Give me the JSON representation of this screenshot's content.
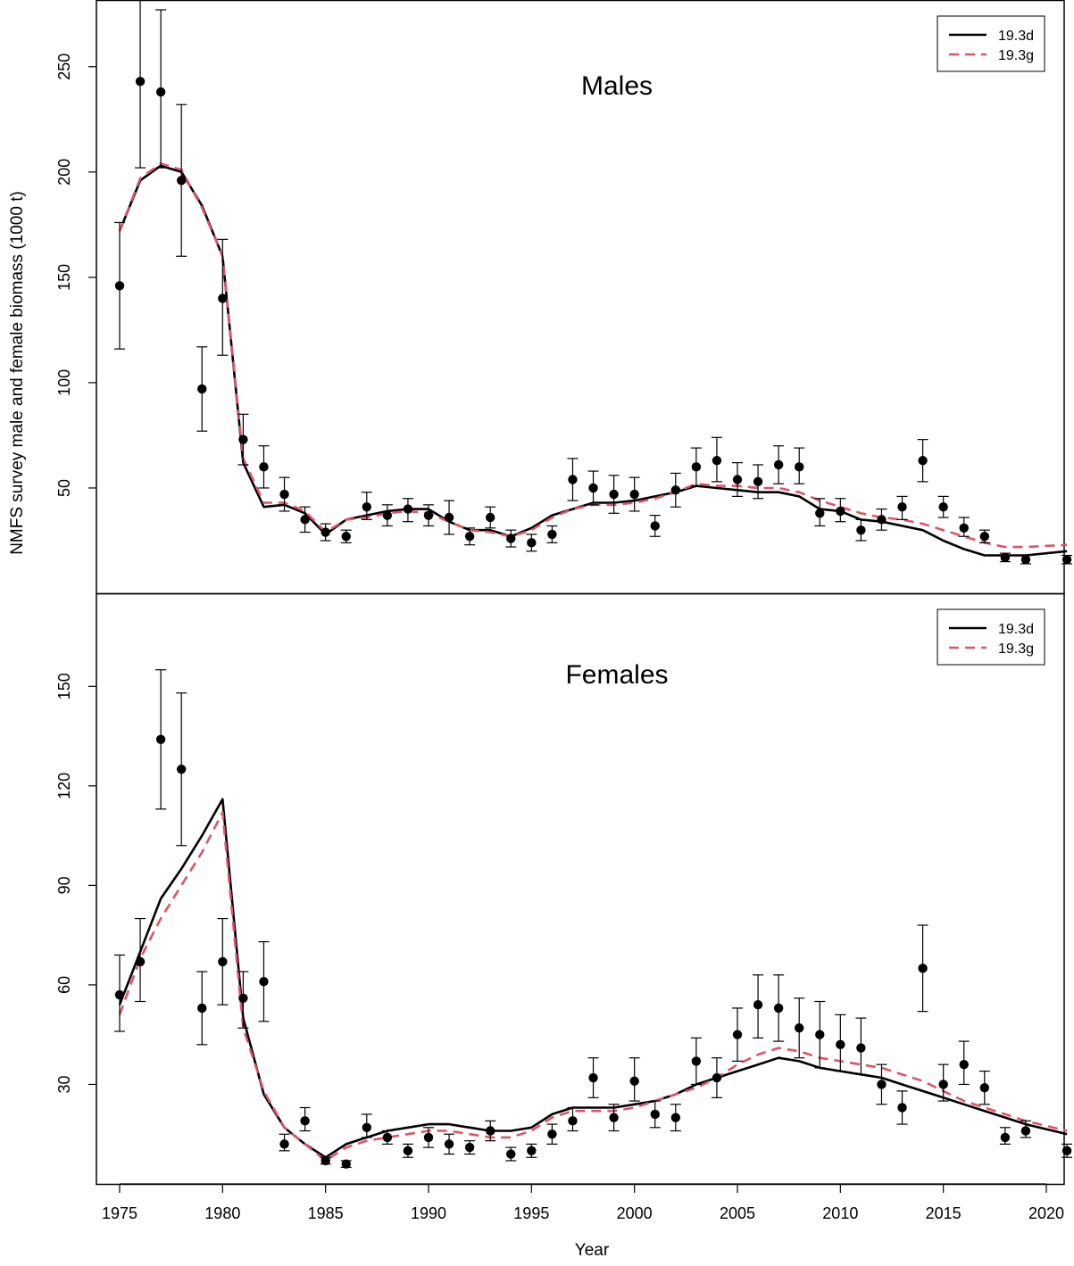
{
  "ylabel": "NMFS survey male and female biomass (1000 t)",
  "xlabel": "Year",
  "colors": {
    "model_3d": "#000000",
    "model_3g": "#DF536B",
    "obs": "#000000"
  },
  "chart_data": [
    {
      "type": "line",
      "title": "Males",
      "xlim": [
        1975,
        2020
      ],
      "ylim": [
        0,
        280
      ],
      "yticks": [
        50,
        100,
        150,
        200,
        250
      ],
      "legend_position": "top-right",
      "legend": [
        "19.3d",
        "19.3g"
      ],
      "observed": {
        "years": [
          1975,
          1976,
          1977,
          1978,
          1979,
          1980,
          1981,
          1982,
          1983,
          1984,
          1985,
          1986,
          1987,
          1988,
          1989,
          1990,
          1991,
          1992,
          1993,
          1994,
          1995,
          1996,
          1997,
          1998,
          1999,
          2000,
          2001,
          2002,
          2003,
          2004,
          2005,
          2006,
          2007,
          2008,
          2009,
          2010,
          2011,
          2012,
          2013,
          2014,
          2015,
          2016,
          2017,
          2018,
          2019,
          2021
        ],
        "values": [
          146,
          243,
          238,
          196,
          97,
          140,
          73,
          60,
          47,
          35,
          29,
          27,
          41,
          37,
          40,
          37,
          36,
          27,
          36,
          26,
          24,
          28,
          54,
          50,
          47,
          47,
          32,
          49,
          60,
          63,
          54,
          53,
          61,
          60,
          38,
          39,
          30,
          35,
          41,
          63,
          41,
          31,
          27,
          17,
          16,
          16
        ],
        "lower": [
          116,
          202,
          202,
          160,
          77,
          113,
          61,
          50,
          39,
          29,
          25,
          24,
          35,
          32,
          34,
          32,
          28,
          23,
          31,
          22,
          20,
          24,
          44,
          42,
          38,
          39,
          27,
          41,
          51,
          53,
          46,
          45,
          52,
          52,
          32,
          34,
          25,
          30,
          35,
          53,
          36,
          27,
          24,
          15,
          14,
          14
        ],
        "upper": [
          176,
          285,
          277,
          232,
          117,
          168,
          85,
          70,
          55,
          41,
          33,
          30,
          48,
          42,
          45,
          42,
          44,
          31,
          41,
          30,
          28,
          32,
          64,
          58,
          56,
          55,
          37,
          57,
          69,
          74,
          62,
          61,
          70,
          69,
          45,
          45,
          35,
          40,
          46,
          73,
          46,
          36,
          30,
          19,
          18,
          18
        ]
      },
      "series": [
        {
          "name": "19.3d",
          "x": [
            1975,
            1976,
            1977,
            1978,
            1979,
            1980,
            1981,
            1982,
            1983,
            1984,
            1985,
            1986,
            1987,
            1988,
            1989,
            1990,
            1991,
            1992,
            1993,
            1994,
            1995,
            1996,
            1997,
            1998,
            1999,
            2000,
            2001,
            2002,
            2003,
            2004,
            2005,
            2006,
            2007,
            2008,
            2009,
            2010,
            2011,
            2012,
            2013,
            2014,
            2015,
            2016,
            2017,
            2018,
            2019,
            2021
          ],
          "values": [
            172,
            196,
            203,
            200,
            184,
            160,
            62,
            41,
            42,
            38,
            28,
            35,
            37,
            39,
            40,
            40,
            34,
            30,
            30,
            27,
            31,
            37,
            40,
            43,
            43,
            44,
            46,
            48,
            51,
            50,
            49,
            48,
            48,
            46,
            40,
            39,
            35,
            34,
            32,
            30,
            25,
            21,
            18,
            18,
            18,
            20
          ]
        },
        {
          "name": "19.3g",
          "x": [
            1975,
            1976,
            1977,
            1978,
            1979,
            1980,
            1981,
            1982,
            1983,
            1984,
            1985,
            1986,
            1987,
            1988,
            1989,
            1990,
            1991,
            1992,
            1993,
            1994,
            1995,
            1996,
            1997,
            1998,
            1999,
            2000,
            2001,
            2002,
            2003,
            2004,
            2005,
            2006,
            2007,
            2008,
            2009,
            2010,
            2011,
            2012,
            2013,
            2014,
            2015,
            2016,
            2017,
            2018,
            2019,
            2021
          ],
          "values": [
            172,
            197,
            204,
            201,
            183,
            160,
            64,
            43,
            43,
            39,
            29,
            35,
            36,
            38,
            39,
            38,
            34,
            30,
            29,
            27,
            30,
            36,
            40,
            42,
            42,
            43,
            45,
            48,
            52,
            51,
            51,
            50,
            50,
            48,
            44,
            41,
            38,
            36,
            35,
            33,
            30,
            27,
            24,
            22,
            22,
            23
          ]
        }
      ]
    },
    {
      "type": "line",
      "title": "Females",
      "xlim": [
        1975,
        2020
      ],
      "ylim": [
        0,
        170
      ],
      "yticks": [
        30,
        60,
        90,
        120,
        150
      ],
      "legend_position": "top-right",
      "legend": [
        "19.3d",
        "19.3g"
      ],
      "observed": {
        "years": [
          1975,
          1976,
          1977,
          1978,
          1979,
          1980,
          1981,
          1982,
          1983,
          1984,
          1985,
          1986,
          1987,
          1988,
          1989,
          1990,
          1991,
          1992,
          1993,
          1994,
          1995,
          1996,
          1997,
          1998,
          1999,
          2000,
          2001,
          2002,
          2003,
          2004,
          2005,
          2006,
          2007,
          2008,
          2009,
          2010,
          2011,
          2012,
          2013,
          2014,
          2015,
          2016,
          2017,
          2018,
          2019,
          2021
        ],
        "values": [
          57,
          67,
          134,
          125,
          53,
          67,
          56,
          61,
          12,
          19,
          7,
          6,
          17,
          14,
          10,
          14,
          12,
          11,
          16,
          9,
          10,
          15,
          19,
          32,
          20,
          31,
          21,
          20,
          37,
          32,
          45,
          54,
          53,
          47,
          45,
          42,
          41,
          30,
          23,
          65,
          30,
          36,
          29,
          14,
          16,
          10
        ],
        "lower": [
          46,
          55,
          113,
          102,
          42,
          54,
          47,
          49,
          10,
          16,
          6,
          5,
          14,
          12,
          8,
          11,
          9,
          9,
          13,
          7,
          8,
          12,
          16,
          26,
          16,
          25,
          17,
          16,
          30,
          26,
          37,
          44,
          43,
          38,
          35,
          34,
          33,
          24,
          18,
          52,
          25,
          30,
          24,
          12,
          14,
          8
        ],
        "upper": [
          69,
          80,
          155,
          148,
          64,
          80,
          64,
          73,
          15,
          23,
          8,
          7,
          21,
          16,
          12,
          17,
          15,
          13,
          19,
          11,
          12,
          18,
          23,
          38,
          24,
          38,
          25,
          24,
          44,
          38,
          53,
          63,
          63,
          56,
          55,
          51,
          50,
          36,
          28,
          78,
          36,
          43,
          34,
          17,
          19,
          12
        ]
      },
      "series": [
        {
          "name": "19.3d",
          "x": [
            1975,
            1976,
            1977,
            1978,
            1979,
            1980,
            1981,
            1982,
            1983,
            1984,
            1985,
            1986,
            1987,
            1988,
            1989,
            1990,
            1991,
            1992,
            1993,
            1994,
            1995,
            1996,
            1997,
            1998,
            1999,
            2000,
            2001,
            2002,
            2003,
            2004,
            2005,
            2006,
            2007,
            2008,
            2009,
            2010,
            2011,
            2012,
            2013,
            2014,
            2015,
            2016,
            2017,
            2018,
            2019,
            2021
          ],
          "values": [
            54,
            70,
            86,
            95,
            105,
            116,
            50,
            27,
            17,
            12,
            8,
            12,
            14,
            16,
            17,
            18,
            18,
            17,
            16,
            16,
            17,
            21,
            23,
            23,
            23,
            24,
            25,
            27,
            30,
            32,
            34,
            36,
            38,
            37,
            35,
            34,
            33,
            32,
            30,
            28,
            26,
            24,
            22,
            20,
            18,
            15
          ]
        },
        {
          "name": "19.3g",
          "x": [
            1975,
            1976,
            1977,
            1978,
            1979,
            1980,
            1981,
            1982,
            1983,
            1984,
            1985,
            1986,
            1987,
            1988,
            1989,
            1990,
            1991,
            1992,
            1993,
            1994,
            1995,
            1996,
            1997,
            1998,
            1999,
            2000,
            2001,
            2002,
            2003,
            2004,
            2005,
            2006,
            2007,
            2008,
            2009,
            2010,
            2011,
            2012,
            2013,
            2014,
            2015,
            2016,
            2017,
            2018,
            2019,
            2021
          ],
          "values": [
            51,
            68,
            80,
            90,
            100,
            112,
            47,
            28,
            17,
            12,
            7,
            11,
            13,
            14,
            15,
            16,
            16,
            15,
            14,
            14,
            16,
            20,
            22,
            22,
            22,
            23,
            25,
            27,
            29,
            32,
            36,
            39,
            41,
            40,
            38,
            37,
            36,
            35,
            33,
            31,
            28,
            25,
            23,
            21,
            19,
            16
          ]
        }
      ]
    }
  ]
}
